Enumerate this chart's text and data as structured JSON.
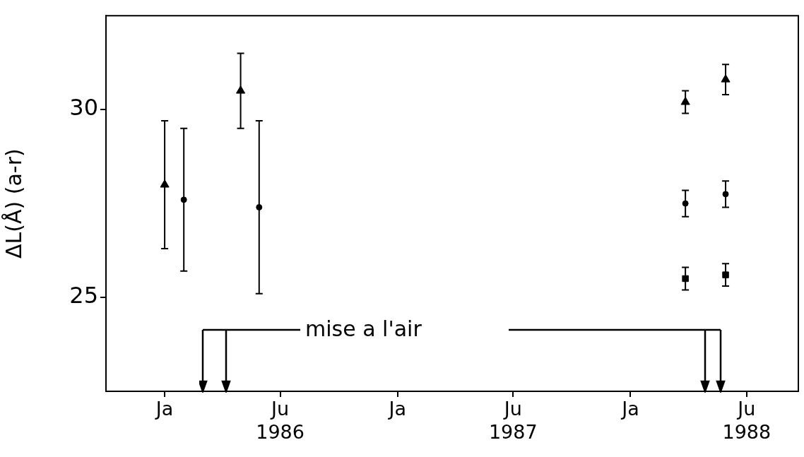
{
  "chart_data": {
    "type": "scatter",
    "ylabel": "ΔL(Å) (a-r)",
    "xlim": [
      "1985-10-01",
      "1988-09-20"
    ],
    "xticks": [
      {
        "value": "1986-01-01",
        "label": "Ja"
      },
      {
        "value": "1986-07-01",
        "label": "Ju\n1986"
      },
      {
        "value": "1987-01-01",
        "label": "Ja"
      },
      {
        "value": "1987-07-01",
        "label": "Ju\n1987"
      },
      {
        "value": "1988-01-01",
        "label": "Ja"
      },
      {
        "value": "1988-07-01",
        "label": "Ju\n1988"
      }
    ],
    "ylim": [
      22.5,
      32.5
    ],
    "yticks": [
      25,
      30
    ],
    "grid": false,
    "legend": false,
    "series": [
      {
        "color": "#000000",
        "marker": "triangle",
        "x": [
          "1986-01-01",
          "1986-04-30",
          "1988-03-27",
          "1988-05-29"
        ],
        "values": [
          28.0,
          30.5,
          30.2,
          30.8
        ],
        "errors": [
          1.7,
          1.0,
          0.3,
          0.4
        ]
      },
      {
        "color": "#000000",
        "marker": "circle",
        "x": [
          "1986-01-31",
          "1986-05-29",
          "1988-03-27",
          "1988-05-29"
        ],
        "values": [
          27.6,
          27.4,
          27.5,
          27.75
        ],
        "errors": [
          1.9,
          2.3,
          0.35,
          0.35
        ]
      },
      {
        "color": "#000000",
        "marker": "square",
        "x": [
          "1988-03-27",
          "1988-05-29"
        ],
        "values": [
          25.5,
          25.6
        ],
        "errors": [
          0.3,
          0.3
        ]
      }
    ],
    "annotations": [
      "mise a l'air"
    ]
  }
}
